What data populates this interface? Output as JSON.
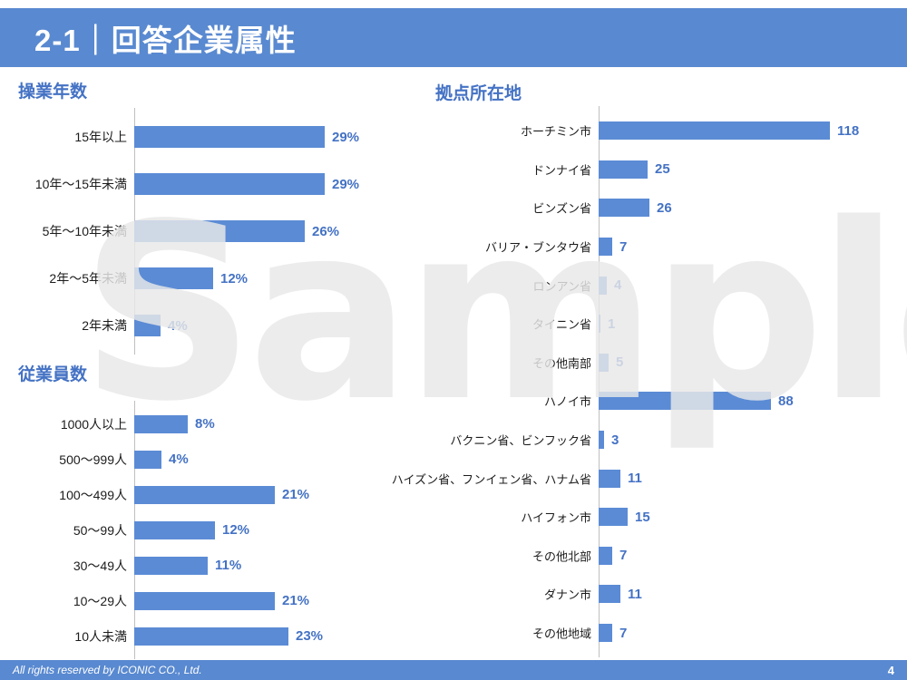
{
  "header": {
    "title": "2-1｜回答企業属性"
  },
  "watermark_text": "Sample",
  "footer": {
    "copyright": "All rights reserved by ICONIC CO., Ltd.",
    "page": "4"
  },
  "colors": {
    "header_bar": "#5989D0",
    "bar_fill": "#5B8BD5",
    "accent_text": "#4472C4",
    "watermark": "#E9E9E9",
    "axis_line": "#BFBFBF"
  },
  "chart_data": [
    {
      "type": "bar",
      "orientation": "horizontal",
      "title": "操業年数",
      "unit": "%",
      "categories": [
        "15年以上",
        "10年〜15年未満",
        "5年〜10年未満",
        "2年〜5年未満",
        "2年未満"
      ],
      "values": [
        29,
        29,
        26,
        12,
        4
      ],
      "value_labels": [
        "29%",
        "29%",
        "26%",
        "12%",
        "4%"
      ],
      "xlim": [
        0,
        29
      ],
      "grid": false,
      "legend": false
    },
    {
      "type": "bar",
      "orientation": "horizontal",
      "title": "従業員数",
      "unit": "%",
      "categories": [
        "1000人以上",
        "500〜999人",
        "100〜499人",
        "50〜99人",
        "30〜49人",
        "10〜29人",
        "10人未満"
      ],
      "values": [
        8,
        4,
        21,
        12,
        11,
        21,
        23
      ],
      "value_labels": [
        "8%",
        "4%",
        "21%",
        "12%",
        "11%",
        "21%",
        "23%"
      ],
      "xlim": [
        0,
        23
      ],
      "grid": false,
      "legend": false
    },
    {
      "type": "bar",
      "orientation": "horizontal",
      "title": "拠点所在地",
      "unit": "",
      "categories": [
        "ホーチミン市",
        "ドンナイ省",
        "ビンズン省",
        "バリア・ブンタウ省",
        "ロンアン省",
        "タイニン省",
        "その他南部",
        "ハノイ市",
        "バクニン省、ビンフック省",
        "ハイズン省、フンイェン省、ハナム省",
        "ハイフォン市",
        "その他北部",
        "ダナン市",
        "その他地域"
      ],
      "values": [
        118,
        25,
        26,
        7,
        4,
        1,
        5,
        88,
        3,
        11,
        15,
        7,
        11,
        7
      ],
      "value_labels": [
        "118",
        "25",
        "26",
        "7",
        "4",
        "1",
        "5",
        "88",
        "3",
        "11",
        "15",
        "7",
        "11",
        "7"
      ],
      "xlim": [
        0,
        118
      ],
      "grid": false,
      "legend": false
    }
  ]
}
